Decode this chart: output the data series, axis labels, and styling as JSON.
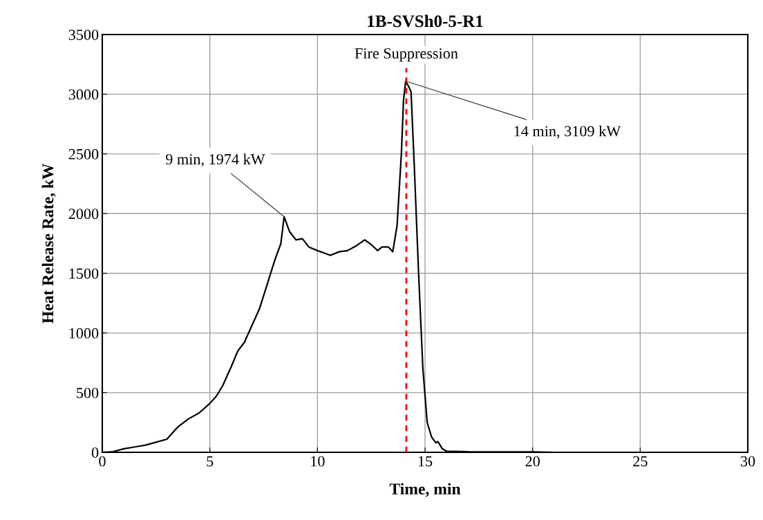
{
  "chart_data": {
    "type": "line",
    "title": "1B-SVSh0-5-R1",
    "xlabel": "Time, min",
    "ylabel": "Heat Release Rate, kW",
    "x": [
      0,
      0.5,
      1,
      1.5,
      2,
      2.5,
      3,
      3.2,
      3.5,
      4,
      4.5,
      5,
      5.3,
      5.6,
      6,
      6.3,
      6.6,
      7,
      7.3,
      7.6,
      8,
      8.3,
      8.45,
      8.7,
      9,
      9.3,
      9.6,
      10,
      10.3,
      10.6,
      11,
      11.4,
      11.8,
      12.2,
      12.5,
      12.8,
      13,
      13.3,
      13.5,
      13.7,
      13.9,
      14,
      14.1,
      14.25,
      14.35,
      14.5,
      14.7,
      14.9,
      15.1,
      15.3,
      15.5,
      15.6,
      15.8,
      16,
      17,
      20,
      21
    ],
    "series": [
      {
        "color": "#000000",
        "values": [
          0,
          5,
          30,
          45,
          60,
          85,
          110,
          150,
          210,
          280,
          330,
          410,
          470,
          560,
          720,
          850,
          920,
          1080,
          1200,
          1370,
          1600,
          1750,
          1974,
          1850,
          1780,
          1790,
          1720,
          1690,
          1670,
          1650,
          1680,
          1690,
          1730,
          1780,
          1740,
          1690,
          1720,
          1720,
          1680,
          1900,
          2500,
          2950,
          3109,
          3060,
          3020,
          2400,
          1500,
          700,
          250,
          130,
          80,
          90,
          30,
          10,
          5,
          3,
          0
        ]
      }
    ],
    "xlim": [
      0,
      30
    ],
    "xticks": [
      0,
      5,
      10,
      15,
      20,
      25,
      30
    ],
    "ylim": [
      0,
      3500
    ],
    "yticks": [
      0,
      500,
      1000,
      1500,
      2000,
      2500,
      3000,
      3500
    ],
    "grid": true,
    "legend": false,
    "marker": "none",
    "line_style": "solid",
    "ref_lines": [
      {
        "axis": "x",
        "value": 14.13,
        "label": "Fire Suppression",
        "color": "#ff0000",
        "line_style": "dashed"
      }
    ],
    "annotations": [
      {
        "text": "9 min, 1974 kW",
        "x": 8.45,
        "y": 1974
      },
      {
        "text": "14 min, 3109 kW",
        "x": 14.1,
        "y": 3109
      }
    ]
  }
}
